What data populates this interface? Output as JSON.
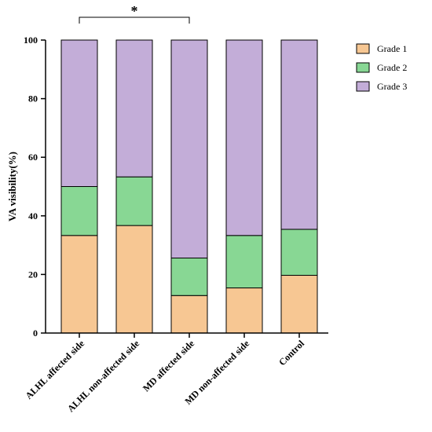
{
  "chart_data": {
    "type": "bar",
    "stacked": true,
    "categories": [
      "ALHL affected side",
      "ALHL non-affected side",
      "MD affected side",
      "MD non-affected side",
      "Control"
    ],
    "series": [
      {
        "name": "Grade 1",
        "color": "#F7C793",
        "values": [
          33.3,
          36.7,
          12.8,
          15.4,
          19.7
        ]
      },
      {
        "name": "Grade 2",
        "color": "#88D794",
        "values": [
          16.7,
          16.6,
          12.8,
          17.9,
          15.7
        ]
      },
      {
        "name": "Grade 3",
        "color": "#C3ADD8",
        "values": [
          50.0,
          46.7,
          74.4,
          66.7,
          64.6
        ]
      }
    ],
    "ylabel": "VA visibility(%)",
    "ylim": [
      0,
      100
    ],
    "yticks": [
      0,
      20,
      40,
      60,
      80,
      100
    ],
    "grid": false,
    "legend_position": "top-right",
    "significance": {
      "from_category": 0,
      "to_category": 2,
      "label": "*"
    }
  }
}
